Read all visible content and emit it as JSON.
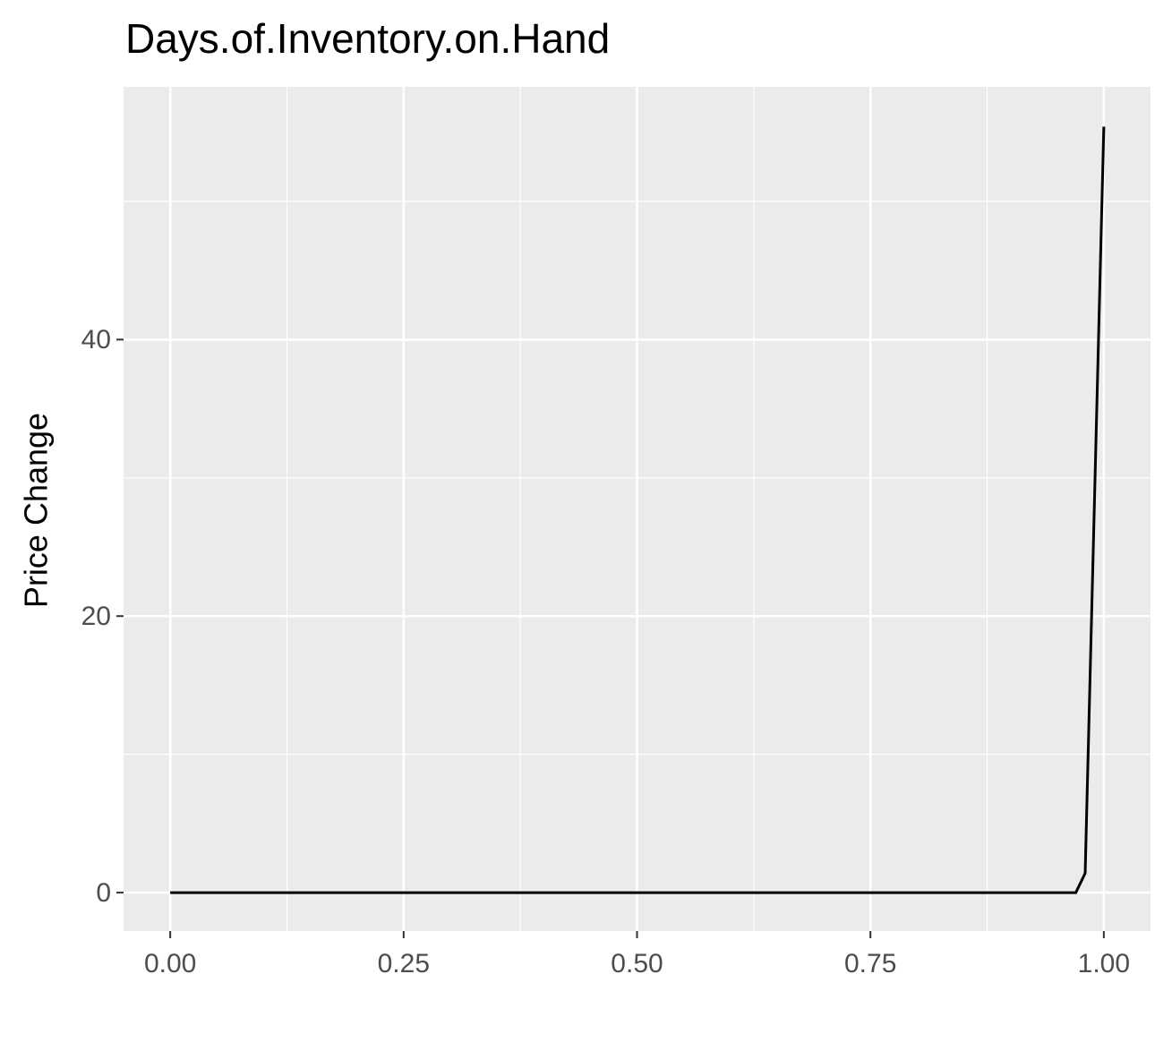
{
  "chart_data": {
    "type": "line",
    "title": "Days.of.Inventory.on.Hand",
    "y_label": "Price Change",
    "x": [
      0,
      0.97,
      0.98,
      1.0
    ],
    "series": [
      {
        "color": "#000000",
        "values": [
          0,
          0,
          1.4,
          55.4
        ]
      }
    ],
    "xlim": [
      -0.05,
      1.05
    ],
    "ylim": [
      -2.78,
      58.28
    ],
    "xticks": [
      {
        "value": 0,
        "label": "0.00"
      },
      {
        "value": 0.25,
        "label": "0.25"
      },
      {
        "value": 0.5,
        "label": "0.50"
      },
      {
        "value": 0.75,
        "label": "0.75"
      },
      {
        "value": 1,
        "label": "1.00"
      }
    ],
    "yticks": [
      0,
      20,
      40
    ],
    "xminor": [
      0.125,
      0.375,
      0.625,
      0.875
    ],
    "yminor": [
      10,
      30,
      50
    ],
    "grid": true
  }
}
